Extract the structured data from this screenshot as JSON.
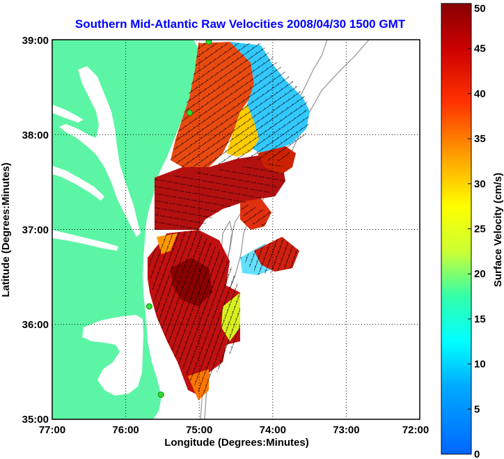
{
  "title": "Southern Mid-Atlantic Raw Velocities 2008/04/30 1500 GMT",
  "x_axis": {
    "label": "Longitude (Degrees:Minutes)",
    "ticks": [
      "77:00",
      "76:00",
      "75:00",
      "74:00",
      "73:00",
      "72:00"
    ]
  },
  "y_axis": {
    "label": "Latitude (Degrees:Minutes)",
    "ticks": [
      "39:00",
      "38:00",
      "37:00",
      "36:00",
      "35:00"
    ]
  },
  "colorbar": {
    "label": "Surface Velocity (cm/s)",
    "ticks": [
      "50",
      "45",
      "40",
      "35",
      "30",
      "25",
      "20",
      "15",
      "10",
      "5",
      "0"
    ],
    "range": [
      0,
      50
    ],
    "colormap": "jet"
  },
  "colors": {
    "land": "#5cf5a5",
    "title": "#0000ff",
    "station": "#33dd33"
  },
  "map_extent": {
    "lon": [
      -77,
      -72
    ],
    "lat": [
      35,
      39
    ]
  },
  "stations": [
    {
      "lon": -74.87,
      "lat": 38.98
    },
    {
      "lon": -75.13,
      "lat": 38.23
    },
    {
      "lon": -75.68,
      "lat": 36.19
    },
    {
      "lon": -75.52,
      "lat": 35.26
    }
  ],
  "velocity_regions": [
    {
      "name": "north-high",
      "speed_cm_s": 42
    },
    {
      "name": "northeast-low",
      "speed_cm_s": 12
    },
    {
      "name": "central-band",
      "speed_cm_s": 48
    },
    {
      "name": "south-core",
      "speed_cm_s": 47
    },
    {
      "name": "south-edge",
      "speed_cm_s": 22
    }
  ]
}
